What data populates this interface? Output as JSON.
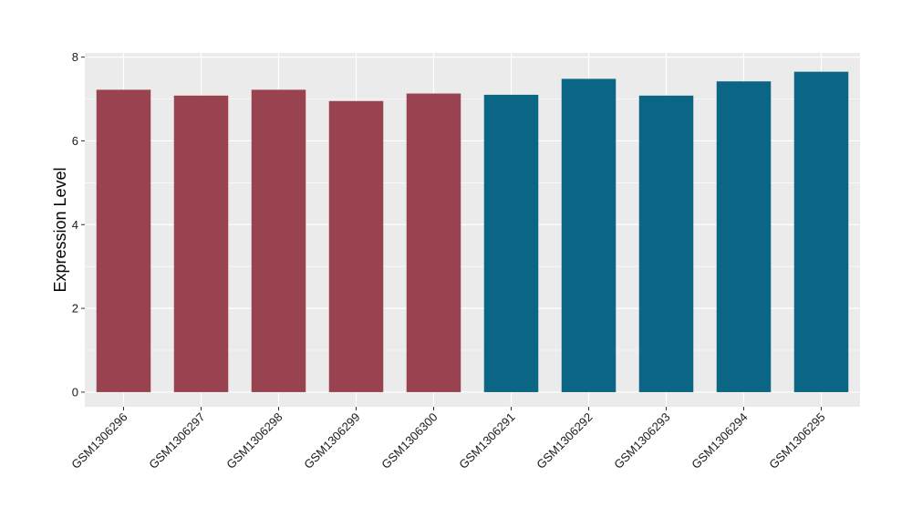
{
  "chart_data": {
    "type": "bar",
    "title": "",
    "xlabel": "",
    "ylabel": "Expression Level",
    "ylim": [
      -0.35,
      8.1
    ],
    "yticks": [
      0,
      2,
      4,
      6,
      8
    ],
    "grid": true,
    "categories": [
      "GSM1306296",
      "GSM1306297",
      "GSM1306298",
      "GSM1306299",
      "GSM1306300",
      "GSM1306291",
      "GSM1306292",
      "GSM1306293",
      "GSM1306294",
      "GSM1306295"
    ],
    "values": [
      7.22,
      7.08,
      7.22,
      6.95,
      7.13,
      7.1,
      7.48,
      7.08,
      7.42,
      7.65
    ],
    "bar_colors": [
      "#9a4350",
      "#9a4350",
      "#9a4350",
      "#9a4350",
      "#9a4350",
      "#0b6585",
      "#0b6585",
      "#0b6585",
      "#0b6585",
      "#0b6585"
    ],
    "panel_background": "#ebebeb",
    "grid_color": "#ffffff"
  }
}
